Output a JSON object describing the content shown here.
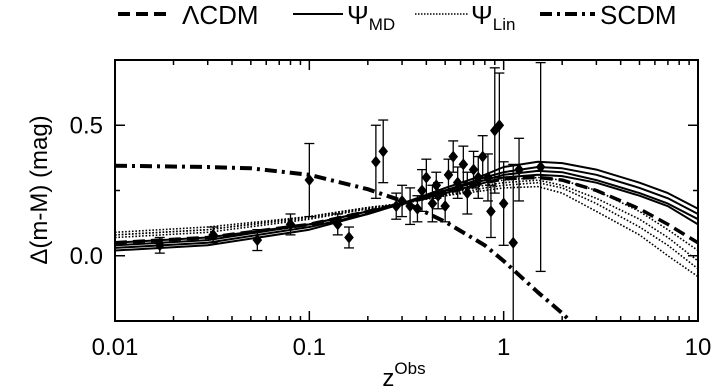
{
  "chart_data": {
    "type": "scatter",
    "title": "",
    "xlabel": {
      "base": "z",
      "sup": "Obs"
    },
    "ylabel": "Δ(m-M) (mag)",
    "xscale": "log",
    "xlim": [
      0.01,
      10
    ],
    "ylim": [
      -0.25,
      0.75
    ],
    "xticks": [
      {
        "value": 0.01,
        "label": "0.01"
      },
      {
        "value": 0.1,
        "label": "0.1"
      },
      {
        "value": 1,
        "label": "1"
      },
      {
        "value": 10,
        "label": "10"
      }
    ],
    "yticks": [
      {
        "value": 0.0,
        "label": "0.0"
      },
      {
        "value": 0.5,
        "label": "0.5"
      }
    ],
    "grid": false,
    "legend_position": "top",
    "legend": [
      {
        "text": "ΛCDM",
        "sub": "",
        "style": "dashed"
      },
      {
        "text": "Ψ",
        "sub": "MD",
        "style": "solid"
      },
      {
        "text": "Ψ",
        "sub": "Lin",
        "style": "dotted"
      },
      {
        "text": "SCDM",
        "sub": "",
        "style": "dashdot"
      }
    ],
    "curve_families": [
      {
        "legend_index": 1,
        "style": "solid",
        "x": [
          0.01,
          0.03,
          0.1,
          0.2,
          0.3,
          0.5,
          0.8,
          1.0,
          1.5,
          2,
          3,
          5,
          7,
          10
        ],
        "curves": [
          [
            0.02,
            0.04,
            0.1,
            0.16,
            0.2,
            0.26,
            0.31,
            0.34,
            0.36,
            0.355,
            0.33,
            0.28,
            0.24,
            0.18
          ],
          [
            0.03,
            0.05,
            0.11,
            0.16,
            0.2,
            0.25,
            0.3,
            0.32,
            0.34,
            0.335,
            0.31,
            0.26,
            0.22,
            0.16
          ],
          [
            0.04,
            0.06,
            0.12,
            0.17,
            0.2,
            0.25,
            0.29,
            0.31,
            0.325,
            0.32,
            0.29,
            0.24,
            0.2,
            0.14
          ],
          [
            0.05,
            0.07,
            0.12,
            0.17,
            0.2,
            0.24,
            0.28,
            0.3,
            0.31,
            0.305,
            0.28,
            0.23,
            0.19,
            0.12
          ]
        ]
      },
      {
        "legend_index": 2,
        "style": "dotted",
        "x": [
          0.01,
          0.03,
          0.1,
          0.2,
          0.3,
          0.5,
          0.8,
          1.0,
          1.5,
          2,
          3,
          5,
          7,
          10
        ],
        "curves": [
          [
            0.07,
            0.09,
            0.14,
            0.18,
            0.2,
            0.24,
            0.28,
            0.29,
            0.3,
            0.29,
            0.25,
            0.17,
            0.1,
            0.02
          ],
          [
            0.08,
            0.1,
            0.145,
            0.18,
            0.2,
            0.235,
            0.27,
            0.28,
            0.29,
            0.27,
            0.22,
            0.14,
            0.07,
            -0.02
          ],
          [
            0.08,
            0.1,
            0.15,
            0.185,
            0.2,
            0.23,
            0.26,
            0.27,
            0.28,
            0.26,
            0.2,
            0.11,
            0.04,
            -0.05
          ],
          [
            0.09,
            0.11,
            0.15,
            0.185,
            0.2,
            0.23,
            0.25,
            0.26,
            0.265,
            0.24,
            0.17,
            0.08,
            0.0,
            -0.08
          ]
        ]
      },
      {
        "legend_index": 0,
        "style": "dashed",
        "x": [
          0.01,
          0.03,
          0.1,
          0.2,
          0.3,
          0.5,
          0.8,
          1.0,
          1.5,
          2,
          3,
          5,
          7,
          10
        ],
        "curves": [
          [
            0.05,
            0.07,
            0.12,
            0.17,
            0.2,
            0.24,
            0.28,
            0.295,
            0.3,
            0.29,
            0.25,
            0.18,
            0.12,
            0.05
          ]
        ]
      },
      {
        "legend_index": 3,
        "style": "dashdot",
        "x": [
          0.01,
          0.03,
          0.05,
          0.1,
          0.2,
          0.3,
          0.5,
          0.8,
          1.0,
          1.5,
          2.0,
          2.2
        ],
        "curves": [
          [
            0.345,
            0.34,
            0.335,
            0.31,
            0.255,
            0.21,
            0.13,
            0.04,
            -0.02,
            -0.14,
            -0.22,
            -0.25
          ]
        ]
      }
    ],
    "points": [
      {
        "x": 0.017,
        "y": 0.04,
        "err": 0.03
      },
      {
        "x": 0.032,
        "y": 0.08,
        "err": 0.03
      },
      {
        "x": 0.054,
        "y": 0.06,
        "err": 0.04
      },
      {
        "x": 0.08,
        "y": 0.12,
        "err": 0.04
      },
      {
        "x": 0.1,
        "y": 0.29,
        "err": 0.14
      },
      {
        "x": 0.14,
        "y": 0.12,
        "err": 0.04
      },
      {
        "x": 0.16,
        "y": 0.07,
        "err": 0.04
      },
      {
        "x": 0.22,
        "y": 0.36,
        "err": 0.14
      },
      {
        "x": 0.24,
        "y": 0.4,
        "err": 0.12
      },
      {
        "x": 0.28,
        "y": 0.19,
        "err": 0.05
      },
      {
        "x": 0.3,
        "y": 0.21,
        "err": 0.06
      },
      {
        "x": 0.33,
        "y": 0.19,
        "err": 0.07
      },
      {
        "x": 0.36,
        "y": 0.18,
        "err": 0.05
      },
      {
        "x": 0.38,
        "y": 0.25,
        "err": 0.08
      },
      {
        "x": 0.4,
        "y": 0.3,
        "err": 0.07
      },
      {
        "x": 0.43,
        "y": 0.2,
        "err": 0.07
      },
      {
        "x": 0.45,
        "y": 0.27,
        "err": 0.05
      },
      {
        "x": 0.46,
        "y": 0.23,
        "err": 0.05
      },
      {
        "x": 0.5,
        "y": 0.19,
        "err": 0.06
      },
      {
        "x": 0.52,
        "y": 0.31,
        "err": 0.06
      },
      {
        "x": 0.55,
        "y": 0.38,
        "err": 0.06
      },
      {
        "x": 0.58,
        "y": 0.28,
        "err": 0.06
      },
      {
        "x": 0.62,
        "y": 0.35,
        "err": 0.07
      },
      {
        "x": 0.65,
        "y": 0.24,
        "err": 0.08
      },
      {
        "x": 0.7,
        "y": 0.33,
        "err": 0.07
      },
      {
        "x": 0.74,
        "y": 0.3,
        "err": 0.08
      },
      {
        "x": 0.78,
        "y": 0.38,
        "err": 0.08
      },
      {
        "x": 0.83,
        "y": 0.3,
        "err": 0.09
      },
      {
        "x": 0.86,
        "y": 0.17,
        "err": 0.1
      },
      {
        "x": 0.9,
        "y": 0.48,
        "err": 0.24
      },
      {
        "x": 0.95,
        "y": 0.5,
        "err": 0.2
      },
      {
        "x": 1.0,
        "y": 0.2,
        "err": 0.16
      },
      {
        "x": 1.12,
        "y": 0.05,
        "err": 0.3
      },
      {
        "x": 1.2,
        "y": 0.33,
        "err": 0.12
      },
      {
        "x": 1.55,
        "y": 0.34,
        "err": 0.4
      }
    ]
  }
}
